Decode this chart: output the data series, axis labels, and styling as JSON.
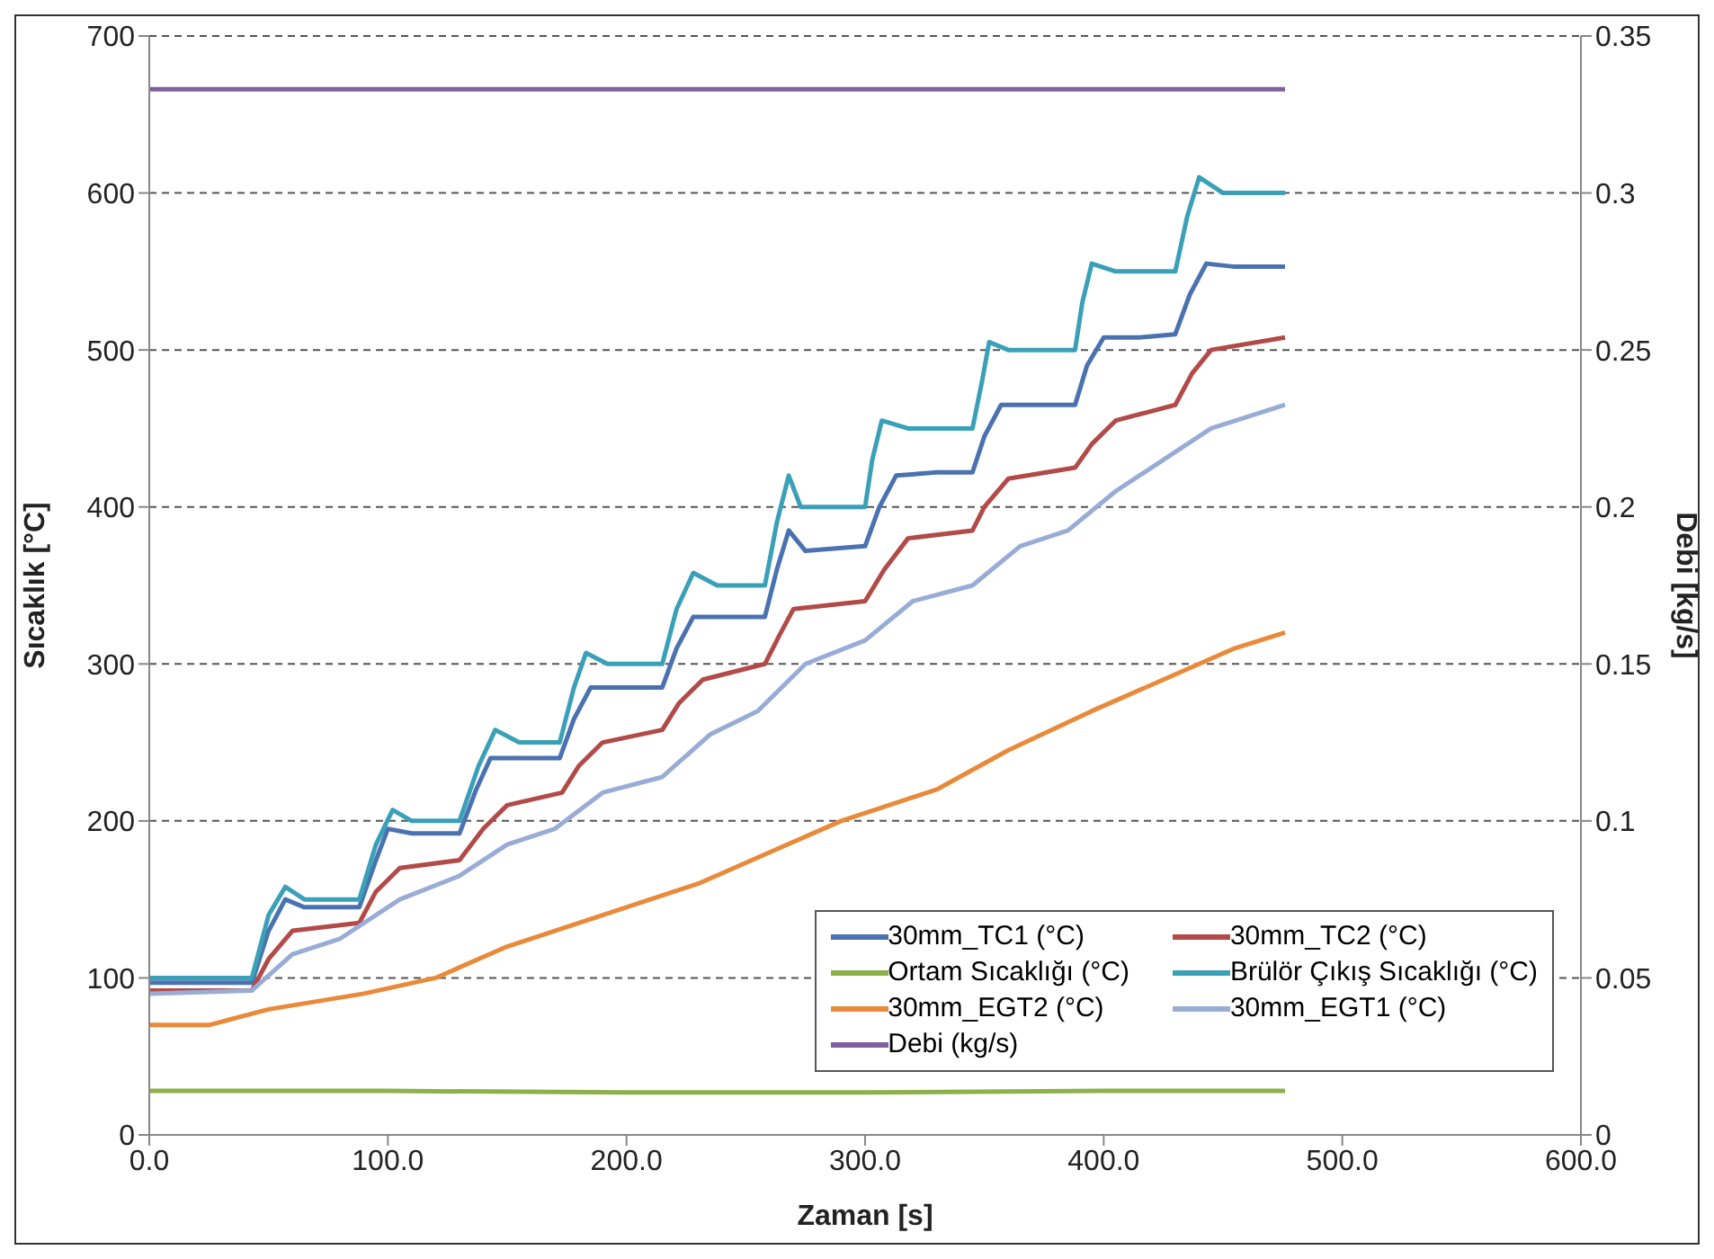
{
  "chart_data": {
    "type": "line",
    "xlabel": "Zaman [s]",
    "ylabel": "Sıcaklık [°C]",
    "y2label": "Debi [kg/s]",
    "xlim": [
      0,
      600
    ],
    "xticks": [
      {
        "value": 0,
        "label": "0.0"
      },
      {
        "value": 100,
        "label": "100.0"
      },
      {
        "value": 200,
        "label": "200.0"
      },
      {
        "value": 300,
        "label": "300.0"
      },
      {
        "value": 400,
        "label": "400.0"
      },
      {
        "value": 500,
        "label": "500.0"
      },
      {
        "value": 600,
        "label": "600.0"
      }
    ],
    "ylim": [
      0,
      700
    ],
    "yticks": [
      0,
      100,
      200,
      300,
      400,
      500,
      600,
      700
    ],
    "y2lim": [
      0,
      0.35
    ],
    "y2ticks": [
      0,
      0.05,
      0.1,
      0.15,
      0.2,
      0.25,
      0.3,
      0.35
    ],
    "grid": "y",
    "legend": "bottom right",
    "marker": "none",
    "line_style": "solid",
    "series": [
      {
        "name": "30mm_TC1 (°C)",
        "color": "#4a72b0",
        "x": [
          0,
          43,
          50,
          57,
          65,
          88,
          95,
          100,
          110,
          130,
          137,
          143,
          150,
          172,
          178,
          185,
          195,
          215,
          221,
          228,
          240,
          258,
          263,
          268,
          275,
          300,
          306,
          313,
          330,
          345,
          350,
          357,
          370,
          388,
          393,
          400,
          415,
          430,
          436,
          443,
          455,
          476
        ],
        "values": [
          97,
          97,
          130,
          150,
          145,
          145,
          175,
          195,
          192,
          192,
          220,
          240,
          240,
          240,
          265,
          285,
          285,
          285,
          310,
          330,
          330,
          330,
          360,
          385,
          372,
          375,
          400,
          420,
          422,
          422,
          445,
          465,
          465,
          465,
          490,
          508,
          508,
          510,
          535,
          555,
          553,
          553
        ]
      },
      {
        "name": "30mm_TC2 (°C)",
        "color": "#b24a48",
        "x": [
          0,
          43,
          50,
          60,
          88,
          95,
          105,
          130,
          140,
          150,
          173,
          180,
          190,
          215,
          222,
          232,
          258,
          264,
          270,
          300,
          308,
          318,
          345,
          350,
          360,
          388,
          395,
          405,
          430,
          437,
          445,
          476
        ],
        "values": [
          92,
          92,
          112,
          130,
          135,
          155,
          170,
          175,
          195,
          210,
          218,
          235,
          250,
          258,
          275,
          290,
          300,
          318,
          335,
          340,
          360,
          380,
          385,
          400,
          418,
          425,
          440,
          455,
          465,
          485,
          500,
          508
        ]
      },
      {
        "name": "Ortam Sıcaklığı (°C)",
        "color": "#8db04a",
        "x": [
          0,
          100,
          200,
          300,
          400,
          476
        ],
        "values": [
          28,
          28,
          27,
          27,
          28,
          28
        ]
      },
      {
        "name": "Brülör Çıkış Sıcaklığı (°C)",
        "color": "#3aa0b8",
        "x": [
          0,
          43,
          50,
          57,
          65,
          88,
          95,
          102,
          110,
          130,
          138,
          145,
          155,
          172,
          178,
          183,
          192,
          215,
          221,
          228,
          238,
          258,
          263,
          268,
          273,
          300,
          303,
          307,
          318,
          345,
          349,
          352,
          360,
          388,
          391,
          395,
          405,
          430,
          435,
          440,
          450,
          476
        ],
        "values": [
          100,
          100,
          140,
          158,
          150,
          150,
          185,
          207,
          200,
          200,
          235,
          258,
          250,
          250,
          285,
          307,
          300,
          300,
          335,
          358,
          350,
          350,
          390,
          420,
          400,
          400,
          430,
          455,
          450,
          450,
          480,
          505,
          500,
          500,
          530,
          555,
          550,
          550,
          585,
          610,
          600,
          600
        ]
      },
      {
        "name": "30mm_EGT2 (°C)",
        "color": "#e98a3a",
        "x": [
          0,
          25,
          50,
          90,
          120,
          150,
          190,
          230,
          260,
          290,
          330,
          360,
          395,
          425,
          455,
          476
        ],
        "values": [
          70,
          70,
          80,
          90,
          100,
          120,
          140,
          160,
          180,
          200,
          220,
          245,
          270,
          290,
          310,
          320
        ]
      },
      {
        "name": "30mm_EGT1 (°C)",
        "color": "#98acd6",
        "x": [
          0,
          43,
          60,
          80,
          105,
          130,
          150,
          170,
          190,
          215,
          235,
          255,
          275,
          300,
          320,
          345,
          365,
          385,
          405,
          425,
          445,
          476
        ],
        "values": [
          90,
          92,
          115,
          125,
          150,
          165,
          185,
          195,
          218,
          228,
          255,
          270,
          300,
          315,
          340,
          350,
          375,
          385,
          410,
          430,
          450,
          465
        ]
      },
      {
        "name": "Debi (kg/s)",
        "color": "#7f5fa0",
        "axis": "y2",
        "x": [
          0,
          476
        ],
        "values": [
          0.333,
          0.333
        ]
      }
    ]
  }
}
